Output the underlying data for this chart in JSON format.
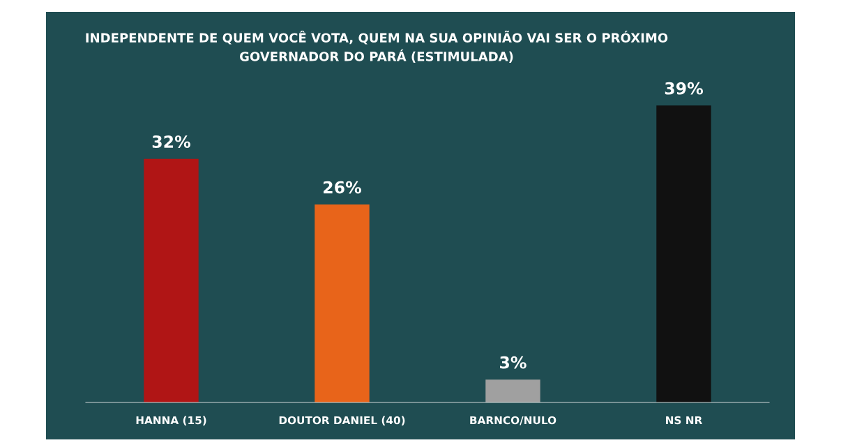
{
  "chart_data": {
    "type": "bar",
    "title": "INDEPENDENTE DE QUEM VOCÊ VOTA, QUEM NA SUA OPINIÃO VAI SER O PRÓXIMO GOVERNADOR DO PARÁ (ESTIMULADA)",
    "categories": [
      "HANNA (15)",
      "DOUTOR DANIEL (40)",
      "BARNCO/NULO",
      "NS NR"
    ],
    "values": [
      32,
      26,
      3,
      39
    ],
    "colors": [
      "#b01515",
      "#e8641a",
      "#a0a0a0",
      "#111111"
    ],
    "value_labels": [
      "32%",
      "26%",
      "3%",
      "39%"
    ],
    "legend": false,
    "grid": false
  }
}
